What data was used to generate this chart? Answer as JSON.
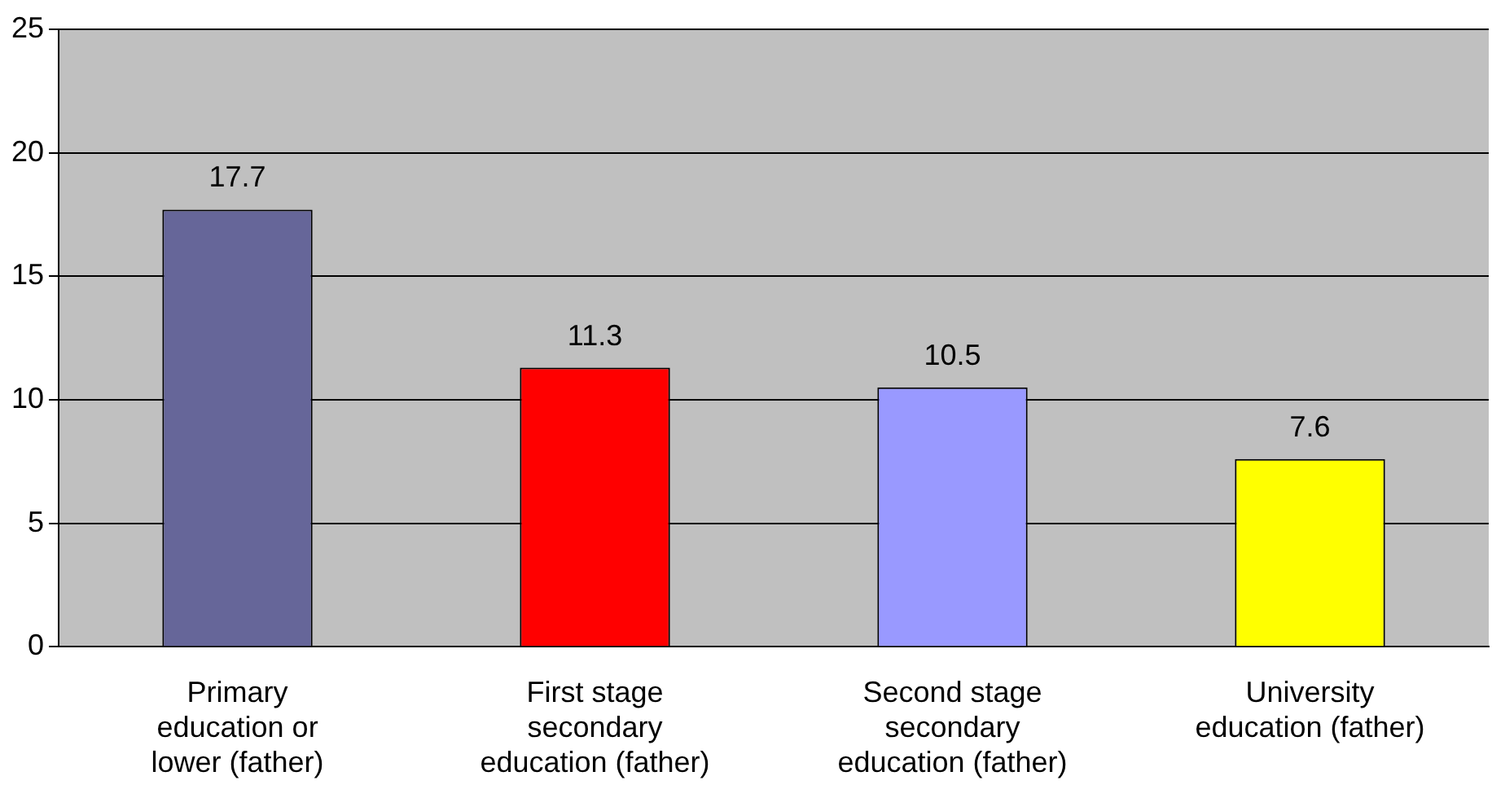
{
  "chart_data": {
    "type": "bar",
    "categories": [
      "Primary education or lower (father)",
      "First stage secondary education (father)",
      "Second stage secondary education (father)",
      "University education (father)"
    ],
    "values": [
      17.7,
      11.3,
      10.5,
      7.6
    ],
    "colors": [
      "#666699",
      "#ff0000",
      "#9999ff",
      "#ffff00"
    ],
    "ylim": [
      0,
      25
    ],
    "yticks": [
      0,
      5,
      10,
      15,
      20,
      25
    ],
    "grid": "y",
    "data_labels": true,
    "legend": false
  }
}
